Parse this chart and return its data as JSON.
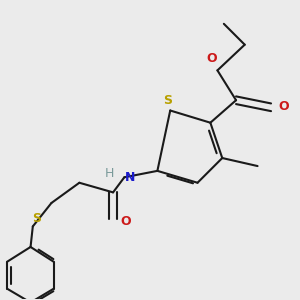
{
  "bg_color": "#ebebeb",
  "bond_color": "#1a1a1a",
  "S_color": "#b8a000",
  "N_color": "#1a1acc",
  "O_color": "#cc1a1a",
  "H_color": "#7a9a9a",
  "lw": 1.5,
  "dbo": 0.012,
  "figsize": [
    3.0,
    3.0
  ],
  "dpi": 100,
  "xlim": [
    0.02,
    0.95
  ],
  "ylim": [
    0.05,
    0.98
  ]
}
